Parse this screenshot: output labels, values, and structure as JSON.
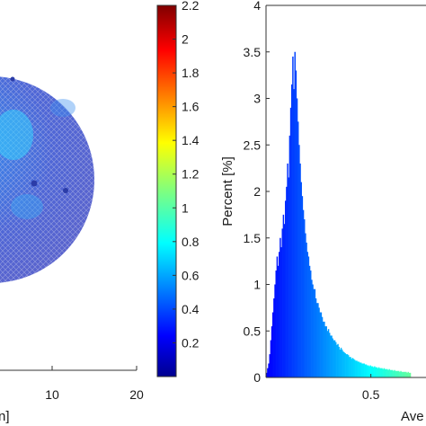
{
  "chart_data": [
    {
      "type": "heatmap",
      "description_visible": "circular domain color map (cropped)",
      "xticks": [
        10,
        20
      ],
      "xtick_labels": [
        "10",
        "20"
      ],
      "xlabel_fragment": "n]",
      "xlim": [
        -10,
        20
      ],
      "colorbar": {
        "colormap": "jet",
        "range": [
          0,
          2.2
        ],
        "ticks": [
          0.2,
          0.4,
          0.6,
          0.8,
          1,
          1.2,
          1.4,
          1.6,
          1.8,
          2,
          2.2
        ],
        "tick_labels": [
          "0.2",
          "0.4",
          "0.6",
          "0.8",
          "1",
          "1.2",
          "1.4",
          "1.6",
          "1.8",
          "2",
          "2.2"
        ]
      }
    },
    {
      "type": "bar",
      "subtype": "histogram",
      "ylabel": "Percent [%]",
      "xlabel_fragment": "Ave",
      "ylim": [
        0,
        4
      ],
      "yticks": [
        0,
        0.5,
        1,
        1.5,
        2,
        2.5,
        3,
        3.5,
        4
      ],
      "ytick_labels": [
        "0",
        "0.5",
        "1",
        "1.5",
        "2",
        "2.5",
        "3",
        "3.5",
        "4"
      ],
      "xticks": [
        0.5
      ],
      "xtick_labels": [
        "0.5"
      ],
      "xlim": [
        0,
        0.7
      ],
      "bin_width": 0.005,
      "x_start": 0.0,
      "values": [
        0.05,
        0.1,
        0.15,
        0.25,
        0.4,
        0.55,
        0.7,
        0.85,
        1.0,
        1.15,
        1.3,
        1.2,
        1.35,
        1.5,
        1.4,
        1.6,
        1.75,
        1.65,
        1.9,
        2.05,
        2.3,
        2.15,
        2.6,
        2.9,
        3.15,
        3.45,
        3.1,
        3.5,
        3.3,
        3.0,
        2.75,
        2.5,
        2.3,
        2.1,
        1.95,
        1.8,
        1.7,
        1.55,
        1.45,
        1.35,
        1.3,
        1.2,
        1.15,
        1.05,
        1.0,
        0.95,
        0.95,
        0.85,
        0.8,
        0.8,
        0.75,
        0.7,
        0.7,
        0.65,
        0.6,
        0.6,
        0.55,
        0.55,
        0.5,
        0.52,
        0.48,
        0.45,
        0.45,
        0.42,
        0.4,
        0.4,
        0.38,
        0.35,
        0.36,
        0.33,
        0.3,
        0.32,
        0.3,
        0.28,
        0.27,
        0.26,
        0.25,
        0.25,
        0.24,
        0.22,
        0.22,
        0.2,
        0.21,
        0.2,
        0.19,
        0.18,
        0.18,
        0.17,
        0.17,
        0.16,
        0.16,
        0.15,
        0.15,
        0.15,
        0.14,
        0.14,
        0.13,
        0.13,
        0.12,
        0.13,
        0.12,
        0.12,
        0.11,
        0.12,
        0.11,
        0.11,
        0.1,
        0.11,
        0.1,
        0.1,
        0.1,
        0.09,
        0.1,
        0.09,
        0.09,
        0.09,
        0.08,
        0.09,
        0.08,
        0.08,
        0.08,
        0.07,
        0.08,
        0.07,
        0.07,
        0.07,
        0.07,
        0.06,
        0.07,
        0.06,
        0.06,
        0.06,
        0.06,
        0.06,
        0.05,
        0.06,
        0.05,
        0.05
      ]
    }
  ]
}
